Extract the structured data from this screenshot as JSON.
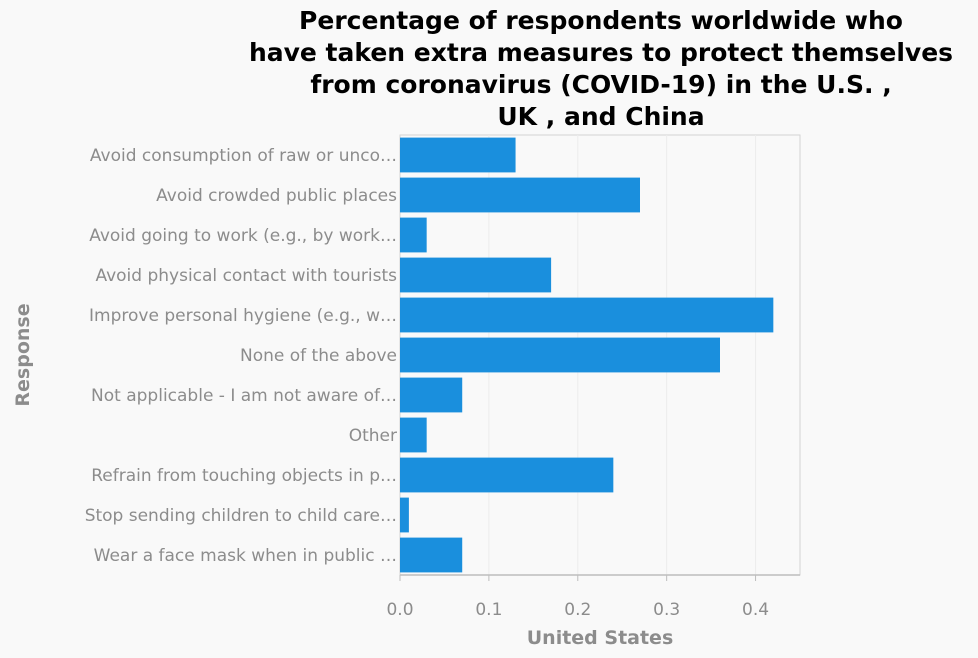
{
  "chart_data": {
    "type": "bar",
    "orientation": "horizontal",
    "title": "Percentage of respondents worldwide who have taken extra measures to protect themselves from coronavirus (COVID-19) in the U.S. , UK , and China",
    "title_lines": [
      "Percentage of respondents worldwide who",
      "have taken extra measures to protect themselves",
      "from coronavirus (COVID-19) in the U.S. ,",
      "UK , and China"
    ],
    "xlabel": "United States",
    "ylabel": "Response",
    "categories": [
      "Avoid consumption of raw or unco…",
      "Avoid crowded public places",
      "Avoid going to work (e.g., by work…",
      "Avoid physical contact with tourists",
      "Improve personal hygiene (e.g., w…",
      "None of the above",
      "Not applicable - I am not aware of…",
      "Other",
      "Refrain from touching objects in p…",
      "Stop sending children to child care…",
      "Wear a face mask when in public …"
    ],
    "values": [
      0.13,
      0.27,
      0.03,
      0.17,
      0.42,
      0.36,
      0.07,
      0.03,
      0.24,
      0.01,
      0.07
    ],
    "xlim": [
      0,
      0.45
    ],
    "xticks": [
      0,
      0.1,
      0.2,
      0.3,
      0.4
    ],
    "xtick_labels": [
      "0.0",
      "0.1",
      "0.2",
      "0.3",
      "0.4"
    ],
    "bar_color": "#1a8fdd",
    "grid": true
  }
}
